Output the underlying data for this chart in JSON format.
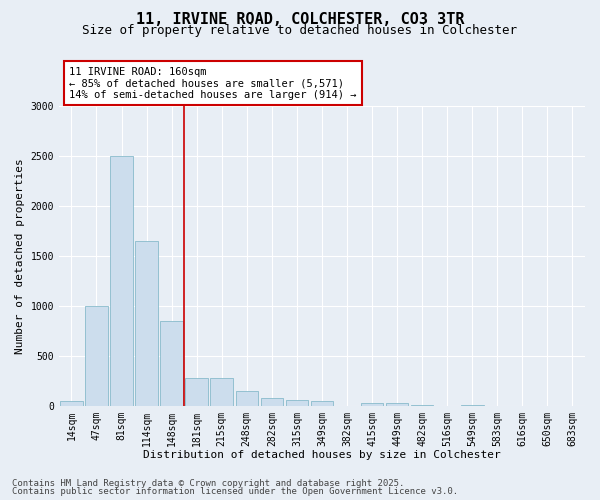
{
  "title": "11, IRVINE ROAD, COLCHESTER, CO3 3TR",
  "subtitle": "Size of property relative to detached houses in Colchester",
  "xlabel": "Distribution of detached houses by size in Colchester",
  "ylabel": "Number of detached properties",
  "categories": [
    "14sqm",
    "47sqm",
    "81sqm",
    "114sqm",
    "148sqm",
    "181sqm",
    "215sqm",
    "248sqm",
    "282sqm",
    "315sqm",
    "349sqm",
    "382sqm",
    "415sqm",
    "449sqm",
    "482sqm",
    "516sqm",
    "549sqm",
    "583sqm",
    "616sqm",
    "650sqm",
    "683sqm"
  ],
  "values": [
    50,
    1000,
    2500,
    1650,
    850,
    280,
    280,
    150,
    75,
    55,
    50,
    2,
    30,
    30,
    5,
    0,
    5,
    0,
    0,
    0,
    0
  ],
  "bar_color": "#ccdded",
  "bar_edge_color": "#88bbcc",
  "background_color": "#e8eef5",
  "grid_color": "#ffffff",
  "vline_color": "#cc0000",
  "annotation_title": "11 IRVINE ROAD: 160sqm",
  "annotation_line1": "← 85% of detached houses are smaller (5,571)",
  "annotation_line2": "14% of semi-detached houses are larger (914) →",
  "annotation_box_color": "#cc0000",
  "ylim": [
    0,
    3000
  ],
  "yticks": [
    0,
    500,
    1000,
    1500,
    2000,
    2500,
    3000
  ],
  "footnote1": "Contains HM Land Registry data © Crown copyright and database right 2025.",
  "footnote2": "Contains public sector information licensed under the Open Government Licence v3.0.",
  "title_fontsize": 11,
  "subtitle_fontsize": 9,
  "tick_fontsize": 7,
  "ylabel_fontsize": 8,
  "xlabel_fontsize": 8,
  "annotation_fontsize": 7.5,
  "footnote_fontsize": 6.5
}
